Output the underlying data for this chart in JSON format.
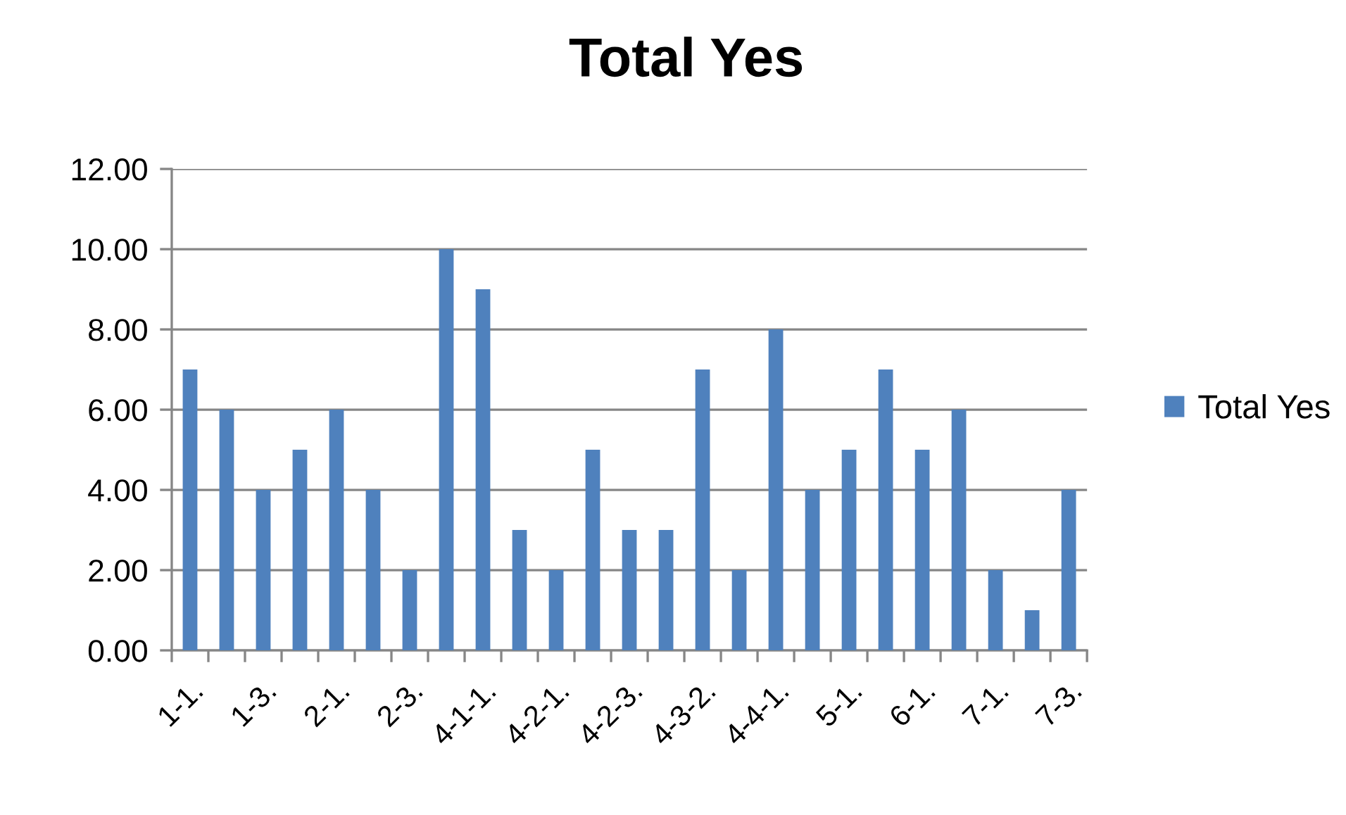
{
  "chart_data": {
    "type": "bar",
    "title": "Total Yes",
    "categories": [
      "1-1.",
      null,
      "1-3.",
      null,
      "2-1.",
      null,
      "2-3.",
      null,
      "4-1-1.",
      null,
      "4-2-1.",
      null,
      "4-2-3.",
      null,
      "4-3-2.",
      null,
      "4-4-1.",
      null,
      "5-1.",
      null,
      "6-1.",
      null,
      "7-1.",
      null,
      "7-3."
    ],
    "series": [
      {
        "name": "Total Yes",
        "color": "#4f81bd",
        "values": [
          7,
          6,
          4,
          5,
          6,
          4,
          2,
          10,
          9,
          3,
          2,
          5,
          3,
          3,
          7,
          2,
          8,
          4,
          5,
          7,
          5,
          6,
          2,
          1,
          4
        ]
      }
    ],
    "ylim": [
      0,
      12
    ],
    "yticks": [
      {
        "value": 0,
        "label": "0.00"
      },
      {
        "value": 2,
        "label": "2.00"
      },
      {
        "value": 4,
        "label": "4.00"
      },
      {
        "value": 6,
        "label": "6.00"
      },
      {
        "value": 8,
        "label": "8.00"
      },
      {
        "value": 10,
        "label": "10.00"
      },
      {
        "value": 12,
        "label": "12.00"
      }
    ],
    "grid": "y",
    "legend": "right"
  }
}
